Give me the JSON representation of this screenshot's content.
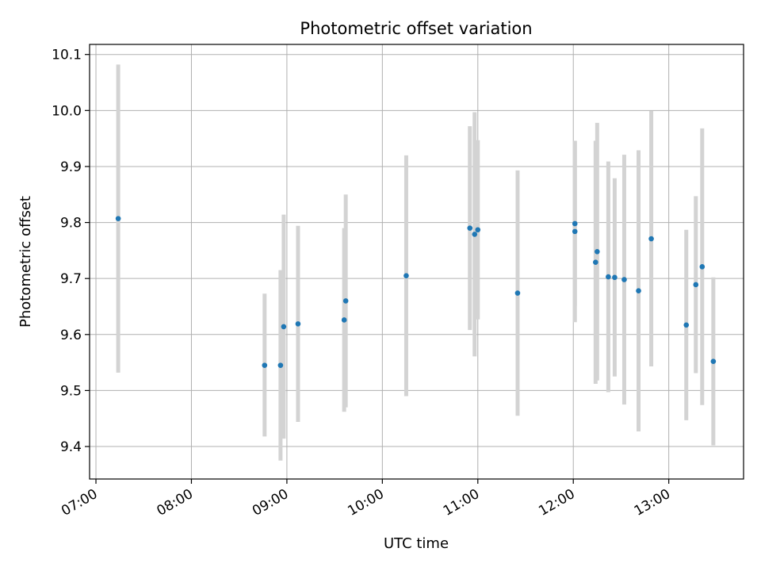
{
  "chart_data": {
    "type": "scatter",
    "title": "Photometric offset variation",
    "xlabel": "UTC time",
    "ylabel": "Photometric offset",
    "x_axis_type": "time",
    "xlim": [
      "06:56",
      "13:47"
    ],
    "ylim": [
      9.342,
      10.118
    ],
    "x_ticks": [
      "07:00",
      "08:00",
      "09:00",
      "10:00",
      "11:00",
      "12:00",
      "13:00"
    ],
    "y_ticks": [
      "9.4",
      "9.5",
      "9.6",
      "9.7",
      "9.8",
      "9.9",
      "10.0",
      "10.1"
    ],
    "grid": true,
    "legend": "none",
    "marker_color": "#1f77b4",
    "errorbar_color": "#d3d3d3",
    "points": [
      {
        "x": "07:14",
        "y": 9.807,
        "yerr": [
          9.532,
          10.082
        ]
      },
      {
        "x": "08:46",
        "y": 9.545,
        "yerr": [
          9.418,
          9.673
        ]
      },
      {
        "x": "08:56",
        "y": 9.545,
        "yerr": [
          9.375,
          9.715
        ]
      },
      {
        "x": "08:58",
        "y": 9.614,
        "yerr": [
          9.414,
          9.814
        ]
      },
      {
        "x": "09:07",
        "y": 9.619,
        "yerr": [
          9.444,
          9.794
        ]
      },
      {
        "x": "09:36",
        "y": 9.626,
        "yerr": [
          9.462,
          9.79
        ]
      },
      {
        "x": "09:37",
        "y": 9.66,
        "yerr": [
          9.47,
          9.85
        ]
      },
      {
        "x": "10:15",
        "y": 9.705,
        "yerr": [
          9.49,
          9.92
        ]
      },
      {
        "x": "10:55",
        "y": 9.79,
        "yerr": [
          9.608,
          9.972
        ]
      },
      {
        "x": "10:58",
        "y": 9.779,
        "yerr": [
          9.561,
          9.997
        ]
      },
      {
        "x": "11:00",
        "y": 9.787,
        "yerr": [
          9.627,
          9.947
        ]
      },
      {
        "x": "11:25",
        "y": 9.674,
        "yerr": [
          9.455,
          9.893
        ]
      },
      {
        "x": "12:01",
        "y": 9.798,
        "yerr": [
          9.651,
          9.945
        ]
      },
      {
        "x": "12:01",
        "y": 9.784,
        "yerr": [
          9.622,
          9.946
        ]
      },
      {
        "x": "12:14",
        "y": 9.729,
        "yerr": [
          9.512,
          9.946
        ]
      },
      {
        "x": "12:15",
        "y": 9.748,
        "yerr": [
          9.518,
          9.978
        ]
      },
      {
        "x": "12:22",
        "y": 9.703,
        "yerr": [
          9.497,
          9.909
        ]
      },
      {
        "x": "12:26",
        "y": 9.702,
        "yerr": [
          9.525,
          9.879
        ]
      },
      {
        "x": "12:32",
        "y": 9.698,
        "yerr": [
          9.475,
          9.921
        ]
      },
      {
        "x": "12:41",
        "y": 9.678,
        "yerr": [
          9.427,
          9.929
        ]
      },
      {
        "x": "12:49",
        "y": 9.771,
        "yerr": [
          9.543,
          9.999
        ]
      },
      {
        "x": "13:11",
        "y": 9.617,
        "yerr": [
          9.447,
          9.787
        ]
      },
      {
        "x": "13:17",
        "y": 9.689,
        "yerr": [
          9.531,
          9.847
        ]
      },
      {
        "x": "13:21",
        "y": 9.721,
        "yerr": [
          9.474,
          9.968
        ]
      },
      {
        "x": "13:28",
        "y": 9.552,
        "yerr": [
          9.402,
          9.702
        ]
      }
    ]
  }
}
